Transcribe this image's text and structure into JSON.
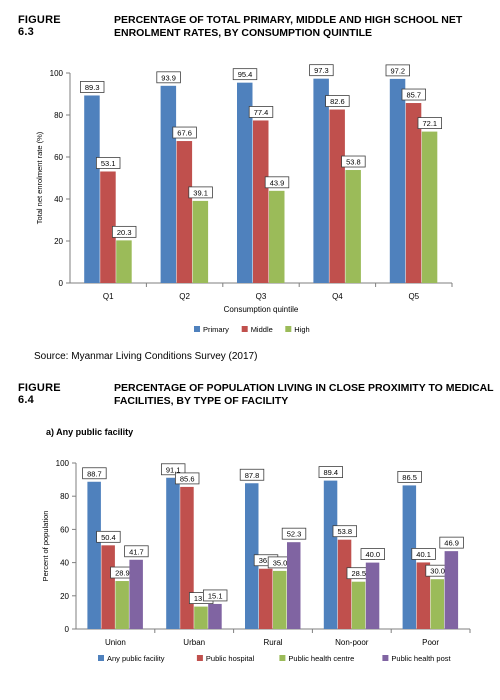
{
  "figure1": {
    "number": "FIGURE 6.3",
    "title": "PERCENTAGE OF TOTAL PRIMARY, MIDDLE  AND HIGH SCHOOL NET ENROLMENT RATES, BY CONSUMPTION QUINTILE"
  },
  "source": "Source: Myanmar Living Conditions Survey (2017)",
  "figure2": {
    "number": "FIGURE 6.4",
    "title": "PERCENTAGE OF POPULATION LIVING IN CLOSE PROXIMITY TO MEDICAL FACILITIES, BY TYPE OF FACILITY",
    "subheading": "a)     Any public facility"
  },
  "chart_data": [
    {
      "type": "bar",
      "categories": [
        "Q1",
        "Q2",
        "Q3",
        "Q4",
        "Q5"
      ],
      "series": [
        {
          "name": "Primary",
          "color": "#4f81bd",
          "values": [
            89.3,
            93.9,
            95.4,
            97.3,
            97.2
          ]
        },
        {
          "name": "Middle",
          "color": "#c0504d",
          "values": [
            53.1,
            67.6,
            77.4,
            82.6,
            85.7
          ]
        },
        {
          "name": "High",
          "color": "#9bbb59",
          "values": [
            20.3,
            39.1,
            43.9,
            53.8,
            72.1
          ]
        }
      ],
      "xlabel": "Consumption quintile",
      "ylabel": "Total net enrolment rate (%)",
      "ylim": [
        0,
        100
      ],
      "yticks": [
        0,
        20,
        40,
        60,
        80,
        100
      ],
      "legend": "bottom",
      "grid": false,
      "data_labels": true
    },
    {
      "type": "bar",
      "categories": [
        "Union",
        "Urban",
        "Rural",
        "Non-poor",
        "Poor"
      ],
      "series": [
        {
          "name": "Any public facility",
          "color": "#4f81bd",
          "values": [
            88.7,
            91.1,
            87.8,
            89.4,
            86.5
          ]
        },
        {
          "name": "Public hospital",
          "color": "#c0504d",
          "values": [
            50.4,
            85.6,
            36.3,
            53.8,
            40.1
          ]
        },
        {
          "name": "Public health centre",
          "color": "#9bbb59",
          "values": [
            28.9,
            13.5,
            35.0,
            28.5,
            30.0
          ]
        },
        {
          "name": "Public health post",
          "color": "#8064a2",
          "values": [
            41.7,
            15.1,
            52.3,
            40.0,
            46.9
          ]
        }
      ],
      "xlabel": "",
      "ylabel": "Percent of population",
      "ylim": [
        0,
        100
      ],
      "yticks": [
        0,
        20,
        40,
        60,
        80,
        100
      ],
      "legend": "bottom",
      "grid": false,
      "data_labels": true
    }
  ]
}
